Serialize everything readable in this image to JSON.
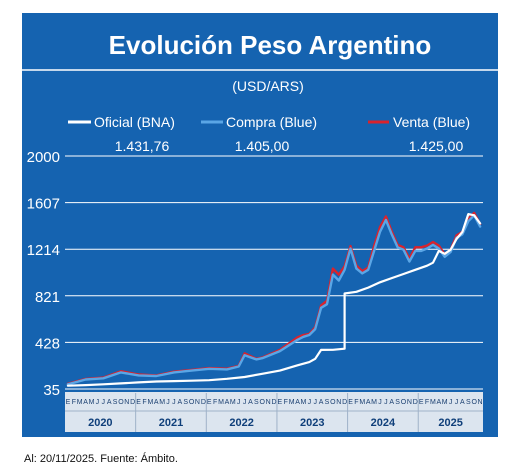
{
  "chart_data": {
    "type": "line",
    "title": "Evolución Peso Argentino",
    "subtitle": "(USD/ARS)",
    "legend": [
      {
        "name": "Oficial (BNA)",
        "value": "1.431,76",
        "color": "#ffffff"
      },
      {
        "name": "Compra (Blue)",
        "value": "1.405,00",
        "color": "#5aa6e6"
      },
      {
        "name": "Venta (Blue)",
        "value": "1.425,00",
        "color": "#d9232d"
      }
    ],
    "legend_position": "top",
    "y_ticks": [
      "2000",
      "1607",
      "1214",
      "821",
      "428",
      "35"
    ],
    "ylim": [
      35,
      2000
    ],
    "grid": true,
    "x_month_letters": "EFMAMJJASOND",
    "years": [
      "2020",
      "2021",
      "2022",
      "2023",
      "2024",
      "2025"
    ],
    "x_range": [
      "2020-01",
      "2025-11"
    ],
    "series": [
      {
        "name": "Oficial (BNA)",
        "color": "#ffffff",
        "points": [
          [
            "2020-01",
            63
          ],
          [
            "2020-04",
            68
          ],
          [
            "2020-07",
            75
          ],
          [
            "2020-10",
            82
          ],
          [
            "2021-01",
            91
          ],
          [
            "2021-04",
            98
          ],
          [
            "2021-07",
            102
          ],
          [
            "2021-10",
            105
          ],
          [
            "2022-01",
            109
          ],
          [
            "2022-04",
            121
          ],
          [
            "2022-07",
            136
          ],
          [
            "2022-10",
            163
          ],
          [
            "2023-01",
            190
          ],
          [
            "2023-04",
            235
          ],
          [
            "2023-06",
            262
          ],
          [
            "2023-07",
            290
          ],
          [
            "2023-08",
            365
          ],
          [
            "2023-10",
            366
          ],
          [
            "2023-12",
            375
          ],
          [
            "2023-12",
            840
          ],
          [
            "2024-02",
            855
          ],
          [
            "2024-04",
            890
          ],
          [
            "2024-06",
            935
          ],
          [
            "2024-08",
            970
          ],
          [
            "2024-10",
            1005
          ],
          [
            "2024-12",
            1040
          ],
          [
            "2025-02",
            1075
          ],
          [
            "2025-03",
            1100
          ],
          [
            "2025-04",
            1200
          ],
          [
            "2025-05",
            1175
          ],
          [
            "2025-06",
            1210
          ],
          [
            "2025-07",
            1300
          ],
          [
            "2025-08",
            1360
          ],
          [
            "2025-09",
            1510
          ],
          [
            "2025-10",
            1500
          ],
          [
            "2025-11",
            1431.76
          ]
        ]
      },
      {
        "name": "Compra (Blue)",
        "color": "#5aa6e6",
        "points": [
          [
            "2020-01",
            75
          ],
          [
            "2020-04",
            115
          ],
          [
            "2020-07",
            125
          ],
          [
            "2020-10",
            175
          ],
          [
            "2021-01",
            150
          ],
          [
            "2021-04",
            145
          ],
          [
            "2021-07",
            175
          ],
          [
            "2021-10",
            190
          ],
          [
            "2022-01",
            205
          ],
          [
            "2022-04",
            200
          ],
          [
            "2022-06",
            225
          ],
          [
            "2022-07",
            320
          ],
          [
            "2022-09",
            285
          ],
          [
            "2022-10",
            295
          ],
          [
            "2023-01",
            355
          ],
          [
            "2023-04",
            450
          ],
          [
            "2023-05",
            475
          ],
          [
            "2023-06",
            490
          ],
          [
            "2023-07",
            540
          ],
          [
            "2023-08",
            720
          ],
          [
            "2023-09",
            750
          ],
          [
            "2023-10",
            1000
          ],
          [
            "2023-11",
            950
          ],
          [
            "2023-12",
            1040
          ],
          [
            "2024-01",
            1220
          ],
          [
            "2024-02",
            1050
          ],
          [
            "2024-03",
            1010
          ],
          [
            "2024-04",
            1040
          ],
          [
            "2024-05",
            1200
          ],
          [
            "2024-06",
            1360
          ],
          [
            "2024-07",
            1460
          ],
          [
            "2024-08",
            1340
          ],
          [
            "2024-09",
            1230
          ],
          [
            "2024-10",
            1210
          ],
          [
            "2024-11",
            1110
          ],
          [
            "2024-12",
            1200
          ],
          [
            "2025-01",
            1200
          ],
          [
            "2025-02",
            1220
          ],
          [
            "2025-03",
            1250
          ],
          [
            "2025-04",
            1220
          ],
          [
            "2025-05",
            1150
          ],
          [
            "2025-06",
            1190
          ],
          [
            "2025-07",
            1310
          ],
          [
            "2025-08",
            1340
          ],
          [
            "2025-09",
            1450
          ],
          [
            "2025-10",
            1500
          ],
          [
            "2025-11",
            1405
          ]
        ]
      },
      {
        "name": "Venta (Blue)",
        "color": "#d9232d",
        "points": [
          [
            "2020-01",
            79
          ],
          [
            "2020-04",
            120
          ],
          [
            "2020-07",
            131
          ],
          [
            "2020-10",
            185
          ],
          [
            "2021-01",
            157
          ],
          [
            "2021-04",
            150
          ],
          [
            "2021-07",
            181
          ],
          [
            "2021-10",
            196
          ],
          [
            "2022-01",
            211
          ],
          [
            "2022-04",
            206
          ],
          [
            "2022-06",
            230
          ],
          [
            "2022-07",
            335
          ],
          [
            "2022-09",
            290
          ],
          [
            "2022-10",
            300
          ],
          [
            "2023-01",
            365
          ],
          [
            "2023-04",
            470
          ],
          [
            "2023-05",
            490
          ],
          [
            "2023-06",
            500
          ],
          [
            "2023-07",
            555
          ],
          [
            "2023-08",
            740
          ],
          [
            "2023-09",
            780
          ],
          [
            "2023-10",
            1050
          ],
          [
            "2023-11",
            1000
          ],
          [
            "2023-12",
            1070
          ],
          [
            "2024-01",
            1240
          ],
          [
            "2024-02",
            1075
          ],
          [
            "2024-03",
            1030
          ],
          [
            "2024-04",
            1060
          ],
          [
            "2024-05",
            1240
          ],
          [
            "2024-06",
            1400
          ],
          [
            "2024-07",
            1490
          ],
          [
            "2024-08",
            1365
          ],
          [
            "2024-09",
            1250
          ],
          [
            "2024-10",
            1230
          ],
          [
            "2024-11",
            1135
          ],
          [
            "2024-12",
            1230
          ],
          [
            "2025-01",
            1230
          ],
          [
            "2025-02",
            1245
          ],
          [
            "2025-03",
            1275
          ],
          [
            "2025-04",
            1245
          ],
          [
            "2025-05",
            1170
          ],
          [
            "2025-06",
            1210
          ],
          [
            "2025-07",
            1330
          ],
          [
            "2025-08",
            1360
          ],
          [
            "2025-09",
            1470
          ],
          [
            "2025-10",
            1520
          ],
          [
            "2025-11",
            1425
          ]
        ]
      }
    ]
  },
  "colors": {
    "panel": "#1563b0",
    "axis_band": "#dce5ef",
    "grid": "#ffffff",
    "year_text": "#0f3f7a"
  },
  "source_text": "Al: 20/11/2025. Fuente: Ámbito."
}
